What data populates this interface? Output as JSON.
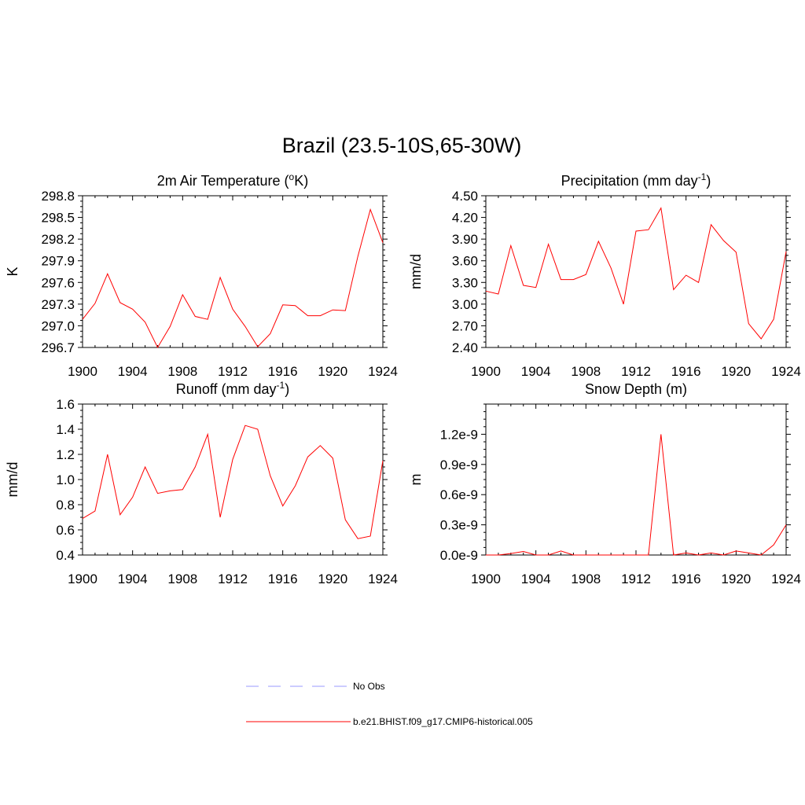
{
  "figure": {
    "title": "Brazil (23.5-10S,65-30W)",
    "colors": {
      "model_line": "#ff0000",
      "obs_line": "#9999ff",
      "axes": "#000000"
    }
  },
  "legend": [
    {
      "label": "No Obs",
      "style": "dashed",
      "color": "#9999ff"
    },
    {
      "label": "b.e21.BHIST.f09_g17.CMIP6-historical.005",
      "style": "solid",
      "color": "#ff0000"
    }
  ],
  "chart_data": [
    {
      "type": "line",
      "title_main": "2m Air Temperature (",
      "title_sup": "o",
      "title_tail": "K)",
      "ylabel": "K",
      "xlim": [
        1900,
        1924
      ],
      "ylim": [
        296.7,
        298.8
      ],
      "x_ticks": [
        "1900",
        "1904",
        "1908",
        "1912",
        "1916",
        "1920",
        "1924"
      ],
      "y_ticks": [
        "296.7",
        "297.0",
        "297.3",
        "297.6",
        "297.9",
        "298.2",
        "298.5",
        "298.8"
      ],
      "grid": false,
      "series": [
        {
          "x": [
            1900,
            1901,
            1902,
            1903,
            1904,
            1905,
            1906,
            1907,
            1908,
            1909,
            1910,
            1911,
            1912,
            1913,
            1914,
            1915,
            1916,
            1917,
            1918,
            1919,
            1920,
            1921,
            1922,
            1923,
            1924
          ],
          "values": [
            297.09,
            297.31,
            297.72,
            297.32,
            297.23,
            297.05,
            296.7,
            296.99,
            297.43,
            297.13,
            297.09,
            297.67,
            297.23,
            296.99,
            296.71,
            296.89,
            297.29,
            297.28,
            297.14,
            297.14,
            297.22,
            297.21,
            297.96,
            298.61,
            298.15
          ]
        }
      ]
    },
    {
      "type": "line",
      "title_main": "Precipitation (mm day",
      "title_sup": "-1",
      "title_tail": ")",
      "ylabel": "mm/d",
      "xlim": [
        1900,
        1924
      ],
      "ylim": [
        2.4,
        4.5
      ],
      "x_ticks": [
        "1900",
        "1904",
        "1908",
        "1912",
        "1916",
        "1920",
        "1924"
      ],
      "y_ticks": [
        "2.40",
        "2.70",
        "3.00",
        "3.30",
        "3.60",
        "3.90",
        "4.20",
        "4.50"
      ],
      "grid": false,
      "series": [
        {
          "x": [
            1900,
            1901,
            1902,
            1903,
            1904,
            1905,
            1906,
            1907,
            1908,
            1909,
            1910,
            1911,
            1912,
            1913,
            1914,
            1915,
            1916,
            1917,
            1918,
            1919,
            1920,
            1921,
            1922,
            1923,
            1924
          ],
          "values": [
            3.18,
            3.14,
            3.81,
            3.26,
            3.23,
            3.83,
            3.34,
            3.34,
            3.41,
            3.87,
            3.5,
            3.0,
            4.01,
            4.03,
            4.33,
            3.2,
            3.4,
            3.3,
            4.1,
            3.88,
            3.72,
            2.73,
            2.52,
            2.79,
            3.73
          ]
        }
      ]
    },
    {
      "type": "line",
      "title_main": "Runoff (mm day",
      "title_sup": "-1",
      "title_tail": ")",
      "ylabel": "mm/d",
      "xlim": [
        1900,
        1924
      ],
      "ylim": [
        0.4,
        1.6
      ],
      "x_ticks": [
        "1900",
        "1904",
        "1908",
        "1912",
        "1916",
        "1920",
        "1924"
      ],
      "y_ticks": [
        "0.4",
        "0.6",
        "0.8",
        "1.0",
        "1.2",
        "1.4",
        "1.6"
      ],
      "grid": false,
      "series": [
        {
          "x": [
            1900,
            1901,
            1902,
            1903,
            1904,
            1905,
            1906,
            1907,
            1908,
            1909,
            1910,
            1911,
            1912,
            1913,
            1914,
            1915,
            1916,
            1917,
            1918,
            1919,
            1920,
            1921,
            1922,
            1923,
            1924
          ],
          "values": [
            0.69,
            0.75,
            1.2,
            0.72,
            0.86,
            1.1,
            0.89,
            0.91,
            0.92,
            1.1,
            1.36,
            0.7,
            1.16,
            1.43,
            1.4,
            1.03,
            0.79,
            0.95,
            1.18,
            1.27,
            1.17,
            0.68,
            0.53,
            0.55,
            1.15
          ]
        }
      ]
    },
    {
      "type": "line",
      "title_main": "Snow Depth (m)",
      "title_sup": "",
      "title_tail": "",
      "ylabel": "m",
      "xlim": [
        1900,
        1924
      ],
      "ylim": [
        0,
        1.5e-09
      ],
      "x_ticks": [
        "1900",
        "1904",
        "1908",
        "1912",
        "1916",
        "1920",
        "1924"
      ],
      "y_ticks": [
        "0.0e-9",
        "0.3e-9",
        "0.6e-9",
        "0.9e-9",
        "1.2e-9"
      ],
      "y_tick_values": [
        0,
        3e-10,
        6e-10,
        9e-10,
        1.2e-09
      ],
      "grid": false,
      "series": [
        {
          "x": [
            1900,
            1901,
            1902,
            1903,
            1904,
            1905,
            1906,
            1907,
            1908,
            1909,
            1910,
            1911,
            1912,
            1913,
            1914,
            1915,
            1916,
            1917,
            1918,
            1919,
            1920,
            1921,
            1922,
            1923,
            1924
          ],
          "values": [
            0,
            0,
            1.5e-11,
            3.5e-11,
            0,
            0,
            4e-11,
            0,
            0,
            0,
            0,
            0,
            0,
            0,
            1.2e-09,
            0,
            2e-11,
            0,
            2e-11,
            0,
            4e-11,
            2e-11,
            0,
            1e-10,
            3e-10
          ]
        }
      ]
    }
  ]
}
